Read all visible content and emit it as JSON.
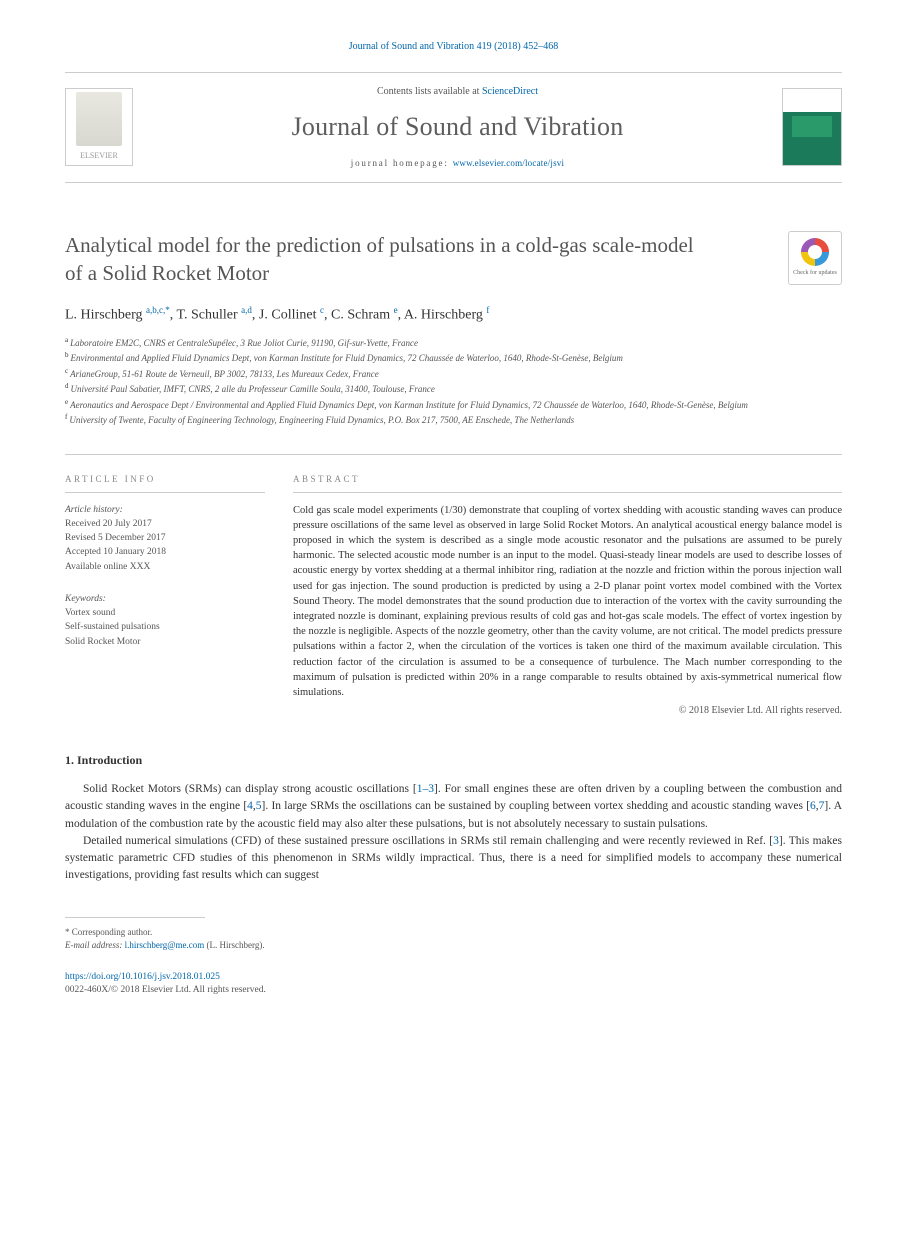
{
  "header": {
    "journal_ref": "Journal of Sound and Vibration 419 (2018) 452–468",
    "contents_prefix": "Contents lists available at ",
    "contents_link": "ScienceDirect",
    "journal_name": "Journal of Sound and Vibration",
    "homepage_prefix": "journal homepage: ",
    "homepage_link": "www.elsevier.com/locate/jsvi",
    "publisher_logo_text": "ELSEVIER",
    "check_updates_label": "Check for updates"
  },
  "article": {
    "title": "Analytical model for the prediction of pulsations in a cold-gas scale-model of a Solid Rocket Motor",
    "authors_html": "L. Hirschberg <sup>a,b,c,*</sup>, T. Schuller <sup>a,d</sup>, J. Collinet <sup>c</sup>, C. Schram <sup>e</sup>, A. Hirschberg <sup>f</sup>"
  },
  "affiliations": [
    {
      "key": "a",
      "text": "Laboratoire EM2C, CNRS et CentraleSupélec, 3 Rue Joliot Curie, 91190, Gif-sur-Yvette, France"
    },
    {
      "key": "b",
      "text": "Environmental and Applied Fluid Dynamics Dept, von Karman Institute for Fluid Dynamics, 72 Chaussée de Waterloo, 1640, Rhode-St-Genèse, Belgium"
    },
    {
      "key": "c",
      "text": "ArianeGroup, 51-61 Route de Verneuil, BP 3002, 78133, Les Mureaux Cedex, France"
    },
    {
      "key": "d",
      "text": "Université Paul Sabatier, IMFT, CNRS, 2 alle du Professeur Camille Soula, 31400, Toulouse, France"
    },
    {
      "key": "e",
      "text": "Aeronautics and Aerospace Dept / Environmental and Applied Fluid Dynamics Dept, von Karman Institute for Fluid Dynamics, 72 Chaussée de Waterloo, 1640, Rhode-St-Genèse, Belgium"
    },
    {
      "key": "f",
      "text": "University of Twente, Faculty of Engineering Technology, Engineering Fluid Dynamics, P.O. Box 217, 7500, AE Enschede, The Netherlands"
    }
  ],
  "info": {
    "section_label": "ARTICLE INFO",
    "history_label": "Article history:",
    "history_lines": [
      "Received 20 July 2017",
      "Revised 5 December 2017",
      "Accepted 10 January 2018",
      "Available online XXX"
    ],
    "keywords_label": "Keywords:",
    "keywords": [
      "Vortex sound",
      "Self-sustained pulsations",
      "Solid Rocket Motor"
    ]
  },
  "abstract": {
    "section_label": "ABSTRACT",
    "text": "Cold gas scale model experiments (1/30) demonstrate that coupling of vortex shedding with acoustic standing waves can produce pressure oscillations of the same level as observed in large Solid Rocket Motors. An analytical acoustical energy balance model is proposed in which the system is described as a single mode acoustic resonator and the pulsations are assumed to be purely harmonic. The selected acoustic mode number is an input to the model. Quasi-steady linear models are used to describe losses of acoustic energy by vortex shedding at a thermal inhibitor ring, radiation at the nozzle and friction within the porous injection wall used for gas injection. The sound production is predicted by using a 2-D planar point vortex model combined with the Vortex Sound Theory. The model demonstrates that the sound production due to interaction of the vortex with the cavity surrounding the integrated nozzle is dominant, explaining previous results of cold gas and hot-gas scale models. The effect of vortex ingestion by the nozzle is negligible. Aspects of the nozzle geometry, other than the cavity volume, are not critical. The model predicts pressure pulsations within a factor 2, when the circulation of the vortices is taken one third of the maximum available circulation. This reduction factor of the circulation is assumed to be a consequence of turbulence. The Mach number corresponding to the maximum of pulsation is predicted within 20% in a range comparable to results obtained by axis-symmetrical numerical flow simulations.",
    "copyright": "© 2018 Elsevier Ltd. All rights reserved."
  },
  "body": {
    "section_number": "1.",
    "section_title": "Introduction",
    "para1_html": "Solid Rocket Motors (SRMs) can display strong acoustic oscillations [<a>1–3</a>]. For small engines these are often driven by a coupling between the combustion and acoustic standing waves in the engine [<a>4</a>,<a>5</a>]. In large SRMs the oscillations can be sustained by coupling between vortex shedding and acoustic standing waves [<a>6</a>,<a>7</a>]. A modulation of the combustion rate by the acoustic field may also alter these pulsations, but is not absolutely necessary to sustain pulsations.",
    "para2_html": "Detailed numerical simulations (CFD) of these sustained pressure oscillations in SRMs stil remain challenging and were recently reviewed in Ref. [<a>3</a>]. This makes systematic parametric CFD studies of this phenomenon in SRMs wildly impractical. Thus, there is a need for simplified models to accompany these numerical investigations, providing fast results which can suggest"
  },
  "footer": {
    "corr_label": "* Corresponding author.",
    "email_label": "E-mail address:",
    "email": "l.hirschberg@me.com",
    "email_suffix": "(L. Hirschberg).",
    "doi_link": "https://doi.org/10.1016/j.jsv.2018.01.025",
    "issn_line": "0022-460X/© 2018 Elsevier Ltd. All rights reserved."
  },
  "colors": {
    "link": "#0066aa",
    "text": "#333333",
    "muted": "#555555",
    "rule": "#cccccc",
    "heading_gray": "#5d5d5d"
  },
  "typography": {
    "journal_name_pt": 26,
    "title_pt": 21,
    "authors_pt": 14,
    "body_pt": 11.5,
    "abstract_pt": 10.5,
    "aff_pt": 9,
    "footer_pt": 9
  }
}
